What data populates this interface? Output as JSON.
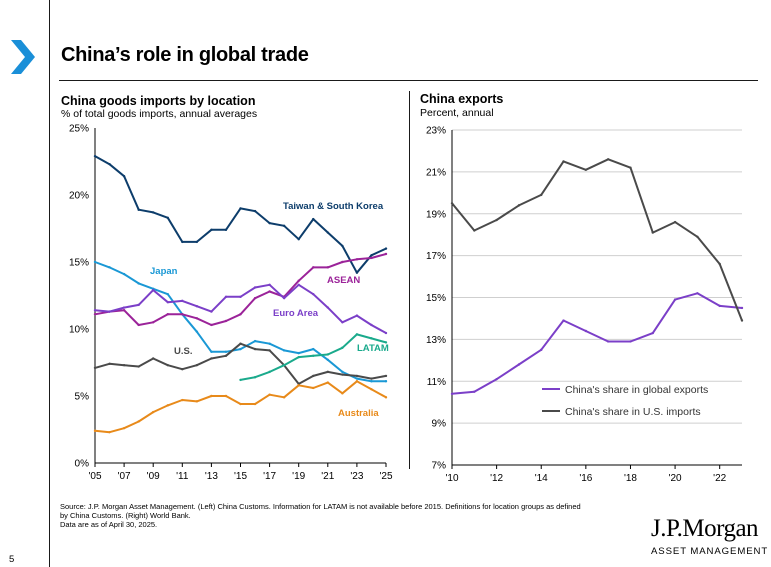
{
  "page": {
    "title": "China’s role in global trade",
    "page_number": "5",
    "footnote": [
      "Source: J.P. Morgan Asset Management. (Left) China Customs. Information for LATAM is not available before 2015. Definitions for location groups as defined",
      "by China Customs. (Right) World Bank.",
      "Data are as of April 30, 2025."
    ],
    "logo": {
      "name": "J.P.Morgan",
      "sub": "ASSET MANAGEMENT"
    },
    "colors": {
      "accent_chevron": "#1a8fd8",
      "rule": "#1a1a1a"
    }
  },
  "chart_data": [
    {
      "type": "line",
      "title": "China goods imports by location",
      "subtitle": "% of total goods imports, annual averages",
      "x": [
        2005,
        2006,
        2007,
        2008,
        2009,
        2010,
        2011,
        2012,
        2013,
        2014,
        2015,
        2016,
        2017,
        2018,
        2019,
        2020,
        2021,
        2022,
        2023,
        2024,
        2025
      ],
      "x_tick_labels": [
        "'05",
        "'07",
        "'09",
        "'11",
        "'13",
        "'15",
        "'17",
        "'19",
        "'21",
        "'23",
        "'25"
      ],
      "x_tick_values": [
        2005,
        2007,
        2009,
        2011,
        2013,
        2015,
        2017,
        2019,
        2021,
        2023,
        2025
      ],
      "xlim": [
        2005,
        2025
      ],
      "ylim": [
        0,
        25
      ],
      "y_ticks": [
        0,
        5,
        10,
        15,
        20,
        25
      ],
      "y_tick_labels": [
        "0%",
        "5%",
        "10%",
        "15%",
        "20%",
        "25%"
      ],
      "series": [
        {
          "name": "Taiwan & South Korea",
          "color": "#0d3d6b",
          "values": [
            22.9,
            22.3,
            21.4,
            18.9,
            18.7,
            18.3,
            16.5,
            16.5,
            17.4,
            17.4,
            19.0,
            18.8,
            17.9,
            17.7,
            16.7,
            18.2,
            17.2,
            16.2,
            14.2,
            15.5,
            16.0
          ]
        },
        {
          "name": "Japan",
          "color": "#1a98d5",
          "values": [
            15.0,
            14.6,
            14.1,
            13.4,
            13.0,
            12.6,
            11.1,
            9.8,
            8.3,
            8.3,
            8.5,
            9.1,
            8.9,
            8.4,
            8.2,
            8.5,
            7.7,
            6.8,
            6.3,
            6.1,
            6.1
          ]
        },
        {
          "name": "ASEAN",
          "color": "#9b2399",
          "values": [
            11.1,
            11.3,
            11.4,
            10.3,
            10.5,
            11.1,
            11.1,
            10.8,
            10.3,
            10.6,
            11.1,
            12.3,
            12.8,
            12.4,
            13.6,
            14.6,
            14.6,
            15.0,
            15.2,
            15.3,
            15.6
          ]
        },
        {
          "name": "Euro Area",
          "color": "#7b3fc8",
          "values": [
            11.4,
            11.3,
            11.6,
            11.8,
            12.9,
            12.0,
            12.1,
            11.7,
            11.3,
            12.4,
            12.4,
            13.1,
            13.3,
            12.3,
            13.3,
            12.6,
            11.6,
            10.5,
            11.0,
            10.3,
            9.7
          ]
        },
        {
          "name": "U.S.",
          "color": "#4a4a4a",
          "values": [
            7.1,
            7.4,
            7.3,
            7.2,
            7.8,
            7.3,
            7.0,
            7.3,
            7.8,
            8.0,
            8.9,
            8.5,
            8.4,
            7.3,
            5.9,
            6.5,
            6.8,
            6.6,
            6.5,
            6.3,
            6.5
          ]
        },
        {
          "name": "LATAM",
          "color": "#1aaa8c",
          "values": [
            null,
            null,
            null,
            null,
            null,
            null,
            null,
            null,
            null,
            null,
            6.2,
            6.4,
            6.8,
            7.3,
            7.9,
            8.0,
            8.1,
            8.6,
            9.6,
            9.3,
            9.0
          ]
        },
        {
          "name": "Australia",
          "color": "#e88a1a",
          "values": [
            2.4,
            2.3,
            2.6,
            3.1,
            3.8,
            4.3,
            4.7,
            4.6,
            5.0,
            5.0,
            4.4,
            4.4,
            5.1,
            4.9,
            5.8,
            5.6,
            6.0,
            5.2,
            6.1,
            5.5,
            4.9
          ]
        }
      ]
    },
    {
      "type": "line",
      "title": "China exports",
      "subtitle": "Percent, annual",
      "x": [
        2010,
        2011,
        2012,
        2013,
        2014,
        2015,
        2016,
        2017,
        2018,
        2019,
        2020,
        2021,
        2022,
        2023
      ],
      "x_tick_labels": [
        "'10",
        "'12",
        "'14",
        "'16",
        "'18",
        "'20",
        "'22"
      ],
      "x_tick_values": [
        2010,
        2012,
        2014,
        2016,
        2018,
        2020,
        2022
      ],
      "xlim": [
        2010,
        2023
      ],
      "ylim": [
        7,
        23
      ],
      "y_ticks": [
        7,
        9,
        11,
        13,
        15,
        17,
        19,
        21,
        23
      ],
      "y_tick_labels": [
        "7%",
        "9%",
        "11%",
        "13%",
        "15%",
        "17%",
        "19%",
        "21%",
        "23%"
      ],
      "series": [
        {
          "name": "China's share in global exports",
          "color": "#7b3fc8",
          "values": [
            10.4,
            10.5,
            11.1,
            11.8,
            12.5,
            13.9,
            13.4,
            12.9,
            12.9,
            13.3,
            14.9,
            15.2,
            14.6,
            14.5
          ]
        },
        {
          "name": "China's share in U.S. imports",
          "color": "#4a4a4a",
          "values": [
            19.5,
            18.2,
            18.7,
            19.4,
            19.9,
            21.5,
            21.1,
            21.6,
            21.2,
            18.1,
            18.6,
            17.9,
            16.6,
            13.9
          ]
        }
      ]
    }
  ]
}
